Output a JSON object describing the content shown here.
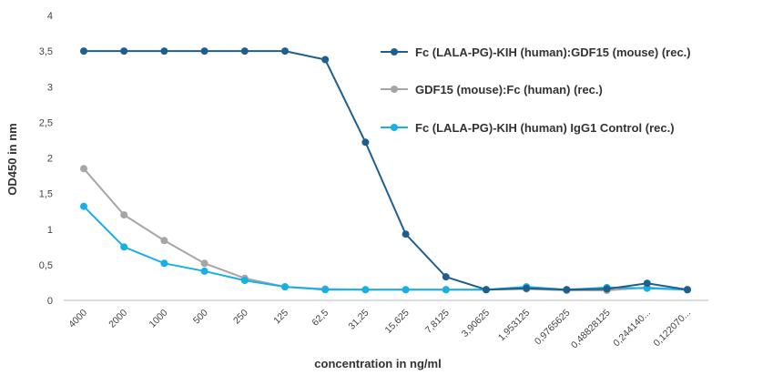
{
  "chart_data": {
    "type": "line",
    "title": "",
    "xlabel": "concentration in ng/ml",
    "ylabel": "OD450 in nm",
    "ylim": [
      0,
      4
    ],
    "yticks": [
      "0",
      "0,5",
      "1",
      "1,5",
      "2",
      "2,5",
      "3",
      "3,5",
      "4"
    ],
    "grid": false,
    "legend_position": "right",
    "categories": [
      "4000",
      "2000",
      "1000",
      "500",
      "250",
      "125",
      "62,5",
      "31,25",
      "15,625",
      "7,8125",
      "3,90625",
      "1,953125",
      "0,9765625",
      "0,48828125",
      "0,244140...",
      "0,122070..."
    ],
    "series": [
      {
        "name": "Fc (LALA-PG)-KIH (human):GDF15 (mouse) (rec.)",
        "color": "#1f5f8f",
        "values": [
          3.5,
          3.5,
          3.5,
          3.5,
          3.5,
          3.5,
          3.38,
          2.22,
          0.93,
          0.33,
          0.15,
          0.17,
          0.15,
          0.16,
          0.24,
          0.15
        ]
      },
      {
        "name": "GDF15 (mouse):Fc (human) (rec.)",
        "color": "#a6a6a6",
        "values": [
          1.85,
          1.2,
          0.84,
          0.52,
          0.31,
          0.19,
          0.16,
          0.15,
          0.15,
          0.15,
          0.15,
          0.16,
          0.14,
          0.14,
          0.18,
          0.15
        ]
      },
      {
        "name": "Fc (LALA-PG)-KIH (human) IgG1 Control (rec.)",
        "color": "#17b0e6",
        "values": [
          1.32,
          0.75,
          0.52,
          0.41,
          0.28,
          0.19,
          0.15,
          0.15,
          0.15,
          0.15,
          0.15,
          0.19,
          0.15,
          0.18,
          0.17,
          0.15
        ]
      }
    ]
  }
}
